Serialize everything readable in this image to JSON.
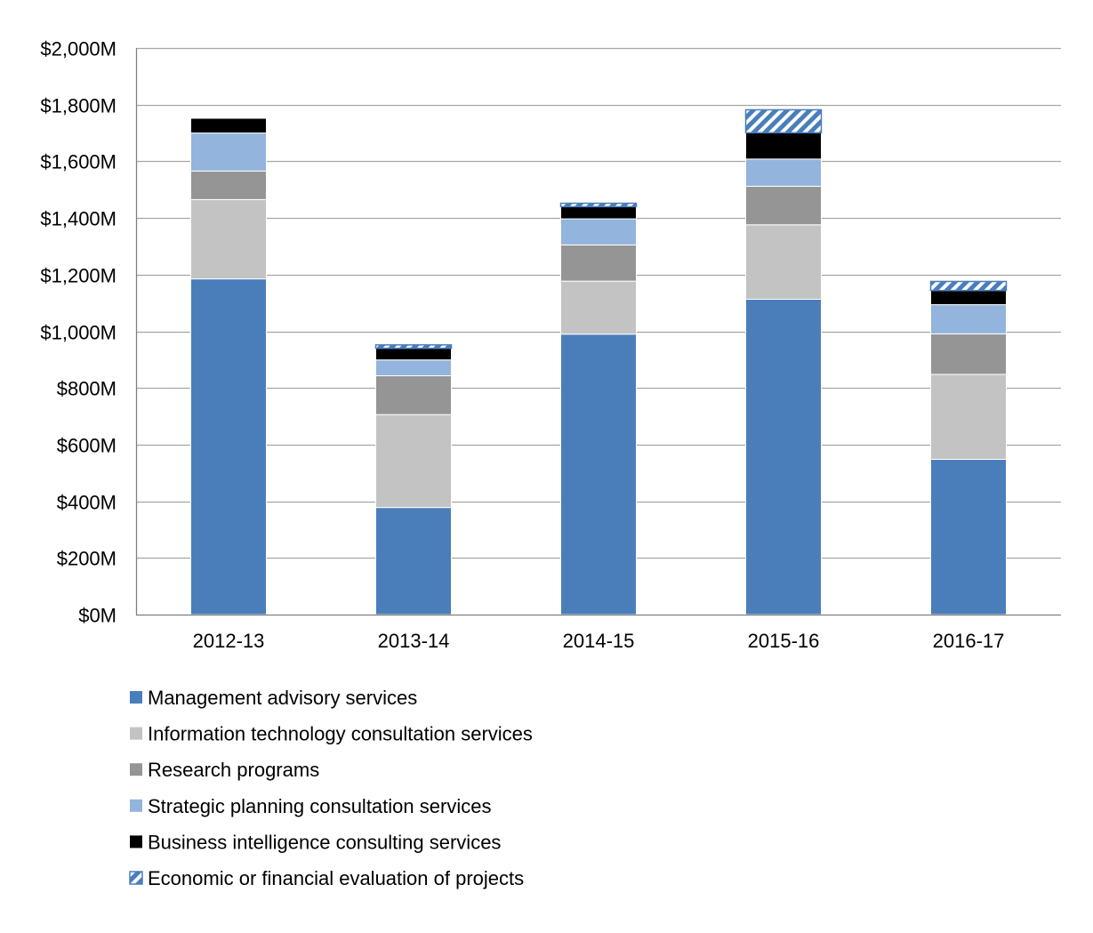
{
  "chart_data": {
    "type": "bar",
    "stacked": true,
    "categories": [
      "2012-13",
      "2013-14",
      "2014-15",
      "2015-16",
      "2016-17"
    ],
    "series": [
      {
        "name": "Management advisory services",
        "color": "#4A7EBB",
        "pattern": "solid",
        "values": [
          1185,
          378,
          990,
          1113,
          548
        ]
      },
      {
        "name": "Information technology consultation services",
        "color": "#C3C3C3",
        "pattern": "solid",
        "values": [
          280,
          328,
          187,
          263,
          300
        ]
      },
      {
        "name": "Research programs",
        "color": "#959595",
        "pattern": "solid",
        "values": [
          101,
          137,
          128,
          136,
          143
        ]
      },
      {
        "name": "Strategic planning consultation services",
        "color": "#93B4DC",
        "pattern": "solid",
        "values": [
          134,
          56,
          92,
          96,
          103
        ]
      },
      {
        "name": "Business intelligence consulting services",
        "color": "#000000",
        "pattern": "solid",
        "values": [
          52,
          41,
          43,
          93,
          50
        ]
      },
      {
        "name": "Economic or financial evaluation of projects",
        "color": "#4A7EBB",
        "pattern": "hatch",
        "values": [
          0,
          12,
          12,
          81,
          32
        ]
      }
    ],
    "ylim": [
      0,
      2000
    ],
    "ytick_step": 200,
    "ytick_labels": [
      "$0M",
      "$200M",
      "$400M",
      "$600M",
      "$800M",
      "$1,000M",
      "$1,200M",
      "$1,400M",
      "$1,600M",
      "$1,800M",
      "$2,000M"
    ],
    "grid": true,
    "legend_position": "bottom",
    "title": "",
    "xlabel": "",
    "ylabel": ""
  }
}
